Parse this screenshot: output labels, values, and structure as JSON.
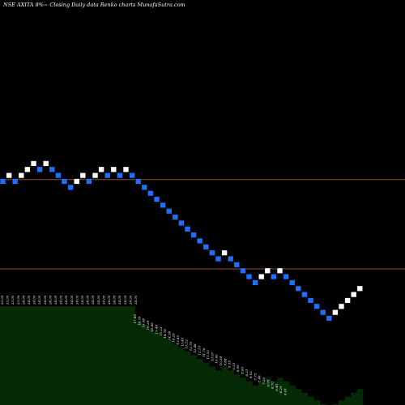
{
  "chart_data": {
    "type": "renko",
    "title": "NSE AXITA 8%~  Closing Daily data  Renko  charts MunafaSutra.com",
    "colors": {
      "background": "#000000",
      "up_brick": "#ffffff",
      "down_brick": "#1f6fff",
      "brick_border": "#000000",
      "reference_line": "#8b4a2a",
      "lower_fill": "#062a06"
    },
    "reference_levels": [
      21.9,
      17.4
    ],
    "bricks": [
      {
        "dir": "down",
        "level": 21.8
      },
      {
        "dir": "up",
        "level": 22.1
      },
      {
        "dir": "down",
        "level": 21.8
      },
      {
        "dir": "up",
        "level": 22.1
      },
      {
        "dir": "up",
        "level": 22.4
      },
      {
        "dir": "up",
        "level": 22.7
      },
      {
        "dir": "down",
        "level": 22.4
      },
      {
        "dir": "up",
        "level": 22.7
      },
      {
        "dir": "down",
        "level": 22.4
      },
      {
        "dir": "down",
        "level": 22.1
      },
      {
        "dir": "down",
        "level": 21.8
      },
      {
        "dir": "down",
        "level": 21.5
      },
      {
        "dir": "up",
        "level": 21.8
      },
      {
        "dir": "up",
        "level": 22.1
      },
      {
        "dir": "down",
        "level": 21.8
      },
      {
        "dir": "up",
        "level": 22.1
      },
      {
        "dir": "up",
        "level": 22.4
      },
      {
        "dir": "down",
        "level": 22.1
      },
      {
        "dir": "up",
        "level": 22.4
      },
      {
        "dir": "down",
        "level": 22.1
      },
      {
        "dir": "up",
        "level": 22.4
      },
      {
        "dir": "down",
        "level": 22.1
      },
      {
        "dir": "down",
        "level": 21.8
      },
      {
        "dir": "down",
        "level": 21.5
      },
      {
        "dir": "down",
        "level": 21.2
      },
      {
        "dir": "down",
        "level": 20.9
      },
      {
        "dir": "down",
        "level": 20.6
      },
      {
        "dir": "down",
        "level": 20.3
      },
      {
        "dir": "down",
        "level": 20.0
      },
      {
        "dir": "down",
        "level": 19.7
      },
      {
        "dir": "down",
        "level": 19.4
      },
      {
        "dir": "down",
        "level": 19.1
      },
      {
        "dir": "down",
        "level": 18.8
      },
      {
        "dir": "down",
        "level": 18.5
      },
      {
        "dir": "down",
        "level": 18.2
      },
      {
        "dir": "down",
        "level": 17.9
      },
      {
        "dir": "up",
        "level": 18.2
      },
      {
        "dir": "down",
        "level": 17.9
      },
      {
        "dir": "down",
        "level": 17.6
      },
      {
        "dir": "down",
        "level": 17.3
      },
      {
        "dir": "down",
        "level": 17.0
      },
      {
        "dir": "down",
        "level": 16.7
      },
      {
        "dir": "up",
        "level": 17.0
      },
      {
        "dir": "up",
        "level": 17.3
      },
      {
        "dir": "down",
        "level": 17.0
      },
      {
        "dir": "up",
        "level": 17.3
      },
      {
        "dir": "down",
        "level": 17.0
      },
      {
        "dir": "down",
        "level": 16.7
      },
      {
        "dir": "down",
        "level": 16.4
      },
      {
        "dir": "down",
        "level": 16.1
      },
      {
        "dir": "down",
        "level": 15.8
      },
      {
        "dir": "down",
        "level": 15.5
      },
      {
        "dir": "down",
        "level": 15.2
      },
      {
        "dir": "down",
        "level": 14.9
      },
      {
        "dir": "up",
        "level": 15.2
      },
      {
        "dir": "up",
        "level": 15.5
      },
      {
        "dir": "up",
        "level": 15.8
      },
      {
        "dir": "up",
        "level": 16.1
      },
      {
        "dir": "up",
        "level": 16.4
      }
    ],
    "date_labels": [
      "23.05",
      "23.05",
      "23.05",
      "23.05",
      "24.05",
      "24.05",
      "24.05",
      "24.05",
      "24.05",
      "24.05",
      "24.05",
      "24.05",
      "24.05",
      "24.05",
      "24.05",
      "24.05",
      "24.05",
      "24.05",
      "24.05",
      "24.05",
      "24.05",
      "24.05",
      "24.05",
      "24.05",
      "24.05",
      "24.05"
    ],
    "lower_labels": [
      "17.45",
      "16.79",
      "16.58",
      "16.39",
      "15.89",
      "15.48",
      "15.23",
      "14.78",
      "14.56",
      "14.29",
      "13.85",
      "13.45",
      "13.12",
      "12.79",
      "12.48",
      "12.15",
      "11.76",
      "11.35",
      "10.97",
      "10.60",
      "10.24",
      "9.88",
      "9.55",
      "9.23",
      "8.95",
      "8.60",
      "8.31",
      "8.02",
      "7.75",
      "7.46",
      "7.20",
      "6.95",
      "6.70",
      "6.45",
      "6.25",
      "6.01"
    ]
  }
}
